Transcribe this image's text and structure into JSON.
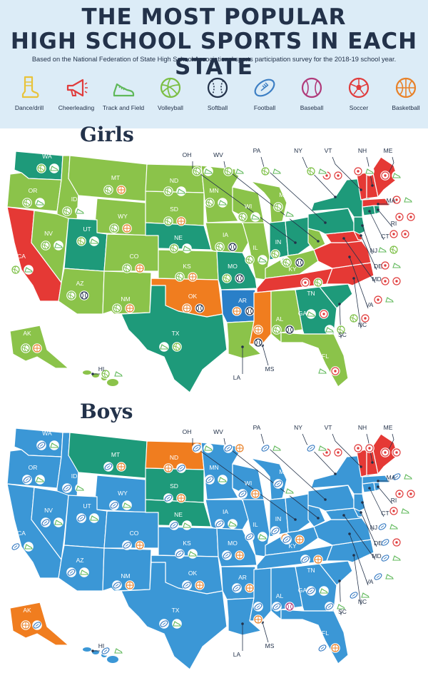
{
  "header": {
    "title_line1": "THE MOST POPULAR",
    "title_line2": "HIGH SCHOOL SPORTS IN EACH STATE",
    "subtitle": "Based on the National Federation of State High School Associations' sports participation survey for the 2018-19 school year."
  },
  "legend": [
    {
      "label": "Dance/drill",
      "icon": "boot-icon",
      "color": "#e8c33a"
    },
    {
      "label": "Cheerleading",
      "icon": "megaphone-icon",
      "color": "#e03c3c"
    },
    {
      "label": "Track and Field",
      "icon": "running-shoe-icon",
      "color": "#5fb85a"
    },
    {
      "label": "Volleyball",
      "icon": "volleyball-icon",
      "color": "#7cbf45"
    },
    {
      "label": "Softball",
      "icon": "softball-icon",
      "color": "#23324a"
    },
    {
      "label": "Football",
      "icon": "football-icon",
      "color": "#3d7fc4"
    },
    {
      "label": "Baseball",
      "icon": "baseball-icon",
      "color": "#b03a7a"
    },
    {
      "label": "Soccer",
      "icon": "soccer-icon",
      "color": "#e03c3c"
    },
    {
      "label": "Basketball",
      "icon": "basketball-icon",
      "color": "#e8822a"
    }
  ],
  "colors": {
    "girls_green": "#8bc34a",
    "girls_teal": "#1e9a7a",
    "girls_red": "#e53935",
    "girls_orange": "#f07d1f",
    "girls_blue": "#2a7fc8",
    "boys_blue": "#3b97d6",
    "boys_teal": "#1e9a7a",
    "boys_orange": "#f07d1f",
    "boys_red": "#e53935",
    "navy": "#23324a"
  },
  "girls": {
    "title": "Girls",
    "labels": {
      "WA": "WA",
      "OR": "OR",
      "CA": "CA",
      "ID": "ID",
      "NV": "NV",
      "MT": "MT",
      "WY": "WY",
      "UT": "UT",
      "AZ": "AZ",
      "CO": "CO",
      "NM": "NM",
      "ND": "ND",
      "SD": "SD",
      "NE": "NE",
      "KS": "KS",
      "OK": "OK",
      "TX": "TX",
      "MN": "MN",
      "IA": "IA",
      "MO": "MO",
      "AR": "AR",
      "LA": "LA",
      "WI": "WI",
      "IL": "IL",
      "MI": "MI",
      "IN": "IN",
      "OH": "OH",
      "KY": "KY",
      "TN": "TN",
      "MS": "MS",
      "AL": "AL",
      "GA": "GA",
      "FL": "FL",
      "SC": "SC",
      "NC": "NC",
      "VA": "VA",
      "WV": "WV",
      "MD": "MD",
      "DE": "DE",
      "PA": "PA",
      "NJ": "NJ",
      "NY": "NY",
      "CT": "CT",
      "RI": "RI",
      "MA": "MA",
      "VT": "VT",
      "NH": "NH",
      "ME": "ME",
      "AK": "AK",
      "HI": "HI"
    }
  },
  "boys": {
    "title": "Boys",
    "labels": {
      "WA": "WA",
      "OR": "OR",
      "CA": "CA",
      "ID": "ID",
      "NV": "NV",
      "MT": "MT",
      "WY": "WY",
      "UT": "UT",
      "AZ": "AZ",
      "CO": "CO",
      "NM": "NM",
      "ND": "ND",
      "SD": "SD",
      "NE": "NE",
      "KS": "KS",
      "OK": "OK",
      "TX": "TX",
      "MN": "MN",
      "IA": "IA",
      "MO": "MO",
      "AR": "AR",
      "LA": "LA",
      "WI": "WI",
      "IL": "IL",
      "MI": "MI",
      "IN": "IN",
      "OH": "OH",
      "KY": "KY",
      "TN": "TN",
      "MS": "MS",
      "AL": "AL",
      "GA": "GA",
      "FL": "FL",
      "SC": "SC",
      "NC": "NC",
      "VA": "VA",
      "WV": "WV",
      "MD": "MD",
      "DE": "DE",
      "PA": "PA",
      "NJ": "NJ",
      "NY": "NY",
      "CT": "CT",
      "RI": "RI",
      "MA": "MA",
      "VT": "VT",
      "NH": "NH",
      "ME": "ME",
      "AK": "AK",
      "HI": "HI"
    }
  }
}
